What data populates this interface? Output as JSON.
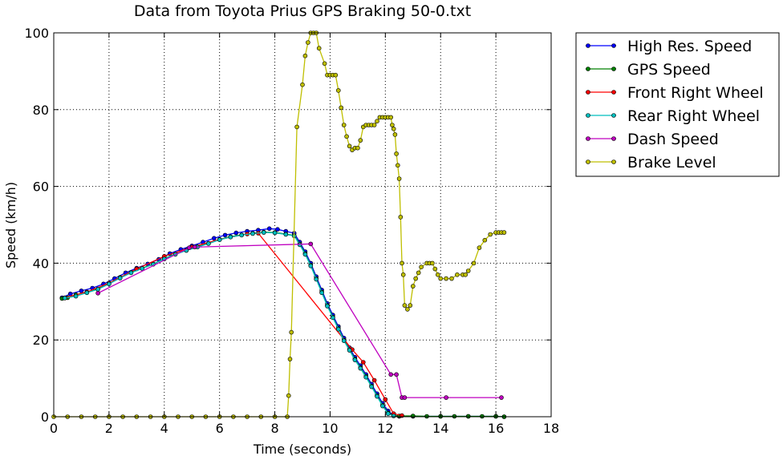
{
  "chart_data": {
    "type": "line",
    "title": "Data from Toyota Prius GPS Braking 50-0.txt",
    "xlabel": "Time (seconds)",
    "ylabel": "Speed (km/h)",
    "xlim": [
      0,
      18
    ],
    "ylim": [
      0,
      100
    ],
    "xticks": [
      0,
      2,
      4,
      6,
      8,
      10,
      12,
      14,
      16,
      18
    ],
    "yticks": [
      0,
      20,
      40,
      60,
      80,
      100
    ],
    "grid": true,
    "legend_position": "outside-right",
    "series": [
      {
        "name": "High Res. Speed",
        "color": "#0000ff",
        "marker": "circle",
        "x": [
          0.3,
          0.6,
          1.0,
          1.4,
          1.8,
          2.2,
          2.6,
          3.0,
          3.4,
          3.8,
          4.2,
          4.6,
          5.0,
          5.4,
          5.8,
          6.2,
          6.6,
          7.0,
          7.4,
          7.8,
          8.1,
          8.4,
          8.7,
          8.9,
          9.1,
          9.3,
          9.5,
          9.7,
          9.9,
          10.1,
          10.3,
          10.5,
          10.7,
          10.9,
          11.1,
          11.3,
          11.5,
          11.7,
          11.9,
          12.1,
          12.3,
          12.5,
          13.0,
          14.0,
          15.0,
          16.0,
          16.3
        ],
        "y": [
          31,
          32,
          32.8,
          33.5,
          34.6,
          36,
          37.5,
          38.7,
          39.8,
          41,
          42.5,
          43.6,
          44.5,
          45.5,
          46.5,
          47.3,
          47.9,
          48.3,
          48.6,
          49.0,
          48.8,
          48.3,
          47.8,
          45.5,
          43,
          40,
          36.5,
          33,
          29.5,
          26.5,
          23.5,
          20.5,
          18,
          15.5,
          13.3,
          11,
          8.5,
          6,
          3.5,
          1.5,
          0.3,
          0.1,
          0.1,
          0.1,
          0.1,
          0.1,
          0.0
        ]
      },
      {
        "name": "GPS Speed",
        "color": "#008000",
        "marker": "circle",
        "x": [
          0.3,
          0.5,
          0.8,
          1.2,
          1.6,
          2.0,
          2.4,
          2.8,
          3.2,
          3.6,
          4.0,
          4.4,
          4.8,
          5.2,
          5.6,
          6.0,
          6.4,
          6.8,
          7.2,
          7.6,
          8.0,
          8.4,
          8.7,
          8.9,
          9.1,
          9.3,
          9.5,
          9.7,
          9.9,
          10.1,
          10.3,
          10.5,
          10.7,
          10.9,
          11.1,
          11.3,
          11.5,
          11.7,
          11.9,
          12.1,
          12.3,
          12.5,
          13.0,
          13.5,
          14.0,
          14.5,
          15.0,
          15.5,
          16.0,
          16.3
        ],
        "y": [
          30.8,
          31,
          31.8,
          32.5,
          33.3,
          34.8,
          36.3,
          37.6,
          38.7,
          39.8,
          41.2,
          42.4,
          43.4,
          44.3,
          45.2,
          46.2,
          46.9,
          47.4,
          47.8,
          48.1,
          48.0,
          47.6,
          47.2,
          45,
          42.5,
          39.5,
          36,
          32.5,
          29,
          26,
          23,
          20,
          17.5,
          15,
          12.8,
          10.5,
          8,
          5.5,
          3,
          1,
          0.3,
          0.2,
          0.2,
          0.1,
          0.1,
          0.1,
          0.1,
          0.1,
          0.1,
          0.0
        ]
      },
      {
        "name": "Front Right Wheel",
        "color": "#ff0000",
        "marker": "circle",
        "x": [
          0.4,
          1.2,
          2.0,
          3.0,
          4.0,
          5.0,
          6.0,
          7.0,
          7.4,
          10.8,
          11.2,
          11.6,
          12.0,
          12.3,
          12.6
        ],
        "y": [
          31,
          32.5,
          34.8,
          38.5,
          41.8,
          44.2,
          46.2,
          47.6,
          47.8,
          17.5,
          14.2,
          9.5,
          4.5,
          0.8,
          0.3
        ]
      },
      {
        "name": "Rear Right Wheel",
        "color": "#00bfbf",
        "marker": "circle",
        "x": [
          0.4,
          0.8,
          1.2,
          1.6,
          2.0,
          2.4,
          2.8,
          3.2,
          3.6,
          4.0,
          4.4,
          4.8,
          5.2,
          5.6,
          6.0,
          6.4,
          6.8,
          7.2,
          7.6,
          8.0,
          8.4,
          8.7,
          8.9,
          9.1,
          9.3,
          9.5,
          9.7,
          9.9,
          10.1,
          10.3,
          10.5,
          10.7,
          10.9,
          11.1,
          11.3,
          11.5,
          11.7,
          11.9,
          12.1,
          12.3
        ],
        "y": [
          30.9,
          31.4,
          32.3,
          33.2,
          34.6,
          36.1,
          37.5,
          38.6,
          39.7,
          41.1,
          42.3,
          43.3,
          44.2,
          45.1,
          46.1,
          46.8,
          47.3,
          47.7,
          48.0,
          47.9,
          47.5,
          47.1,
          44.8,
          42.3,
          39.3,
          35.8,
          32.3,
          28.8,
          25.8,
          22.8,
          19.8,
          17.3,
          14.8,
          12.6,
          10.3,
          7.8,
          5.3,
          2.8,
          0.8,
          0.2
        ]
      },
      {
        "name": "Dash Speed",
        "color": "#bf00bf",
        "marker": "circle",
        "x": [
          1.6,
          4.9,
          5.1,
          9.3,
          12.2,
          12.4,
          12.6,
          12.7,
          14.2,
          16.2
        ],
        "y": [
          32.2,
          44,
          44.2,
          45,
          11,
          11,
          5,
          5,
          5,
          5
        ]
      },
      {
        "name": "Brake Level",
        "color": "#bfbf00",
        "marker": "circle",
        "x": [
          0,
          0.5,
          1,
          1.5,
          2,
          2.5,
          3,
          3.5,
          4,
          4.5,
          5,
          5.5,
          6,
          6.5,
          7,
          7.5,
          8,
          8.45,
          8.5,
          8.55,
          8.6,
          8.8,
          9.0,
          9.1,
          9.2,
          9.3,
          9.4,
          9.5,
          9.6,
          9.8,
          9.9,
          10.0,
          10.1,
          10.2,
          10.3,
          10.4,
          10.5,
          10.6,
          10.7,
          10.8,
          10.9,
          11.0,
          11.1,
          11.2,
          11.3,
          11.4,
          11.5,
          11.6,
          11.7,
          11.8,
          11.9,
          12.0,
          12.1,
          12.2,
          12.25,
          12.3,
          12.35,
          12.4,
          12.45,
          12.5,
          12.55,
          12.6,
          12.65,
          12.7,
          12.8,
          12.9,
          13.0,
          13.1,
          13.2,
          13.3,
          13.5,
          13.6,
          13.7,
          13.8,
          13.9,
          14.0,
          14.2,
          14.4,
          14.6,
          14.8,
          14.9,
          15.0,
          15.2,
          15.4,
          15.6,
          15.8,
          16.0,
          16.1,
          16.2,
          16.3
        ],
        "y": [
          0,
          0,
          0,
          0,
          0,
          0,
          0,
          0,
          0,
          0,
          0,
          0,
          0,
          0,
          0,
          0,
          0,
          0,
          5.5,
          15,
          22,
          75.5,
          86.5,
          94,
          97.5,
          100,
          100,
          100,
          96,
          92,
          89,
          89,
          89,
          89,
          85,
          80.5,
          76,
          73,
          70.5,
          69.5,
          70,
          70,
          72,
          75.5,
          76,
          76,
          76,
          76,
          77,
          78,
          78,
          78,
          78,
          78,
          76,
          75,
          73.5,
          68.5,
          65.5,
          62,
          52,
          40,
          37,
          29,
          28,
          29,
          34,
          36,
          37.5,
          39,
          40,
          40,
          40,
          38.5,
          37,
          36,
          36,
          36,
          37,
          37,
          37,
          38,
          40,
          44,
          46,
          47.5,
          48,
          48,
          48,
          48
        ]
      }
    ]
  }
}
